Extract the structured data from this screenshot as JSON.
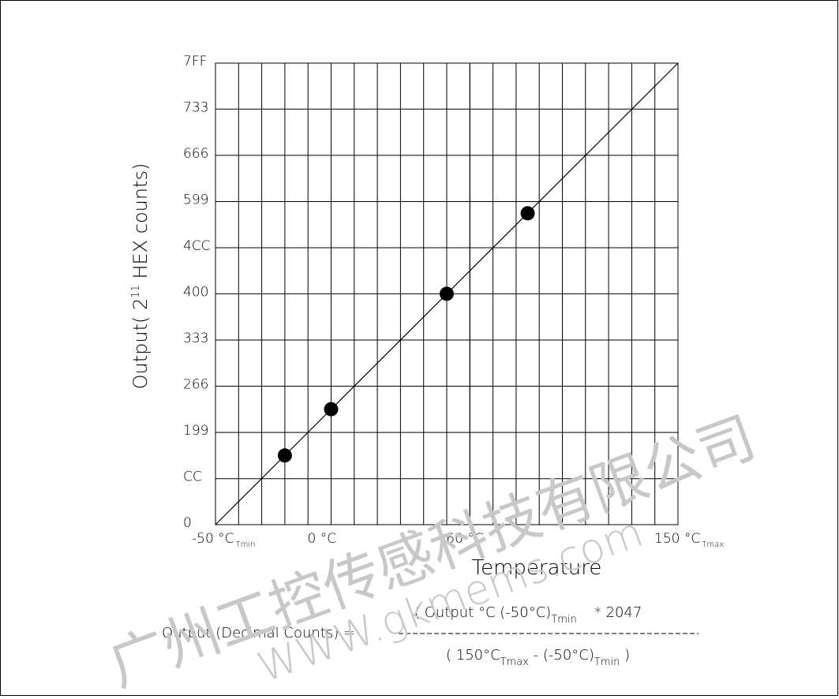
{
  "chart_data": {
    "type": "scatter",
    "x_label": "Temperature",
    "y_label": {
      "before": "Output( 2",
      "superscript": "11",
      "after": " HEX counts)"
    },
    "xlim": [
      -50,
      150
    ],
    "xticks": [
      {
        "value": -50,
        "label": "-50 °C",
        "subscript": "Tmin"
      },
      {
        "value": 0,
        "label": "0 °C"
      },
      {
        "value": 60,
        "label": "60 °C"
      },
      {
        "value": 150,
        "label": "150 °C",
        "subscript": "Tmax"
      }
    ],
    "xgrid": [
      -40,
      -30,
      -20,
      -10,
      0,
      10,
      20,
      30,
      40,
      50,
      60,
      70,
      80,
      90,
      100,
      110,
      120,
      130,
      140
    ],
    "ylim": [
      0,
      2047
    ],
    "yticks": [
      0,
      {
        "value": 204,
        "label": "CC"
      },
      {
        "value": 409,
        "label": "199"
      },
      {
        "value": 614,
        "label": "266"
      },
      {
        "value": 819,
        "label": "333"
      },
      {
        "value": 1024,
        "label": "400"
      },
      {
        "value": 1228,
        "label": "4CC"
      },
      {
        "value": 1433,
        "label": "599"
      },
      {
        "value": 1638,
        "label": "666"
      },
      {
        "value": 1843,
        "label": "733"
      },
      {
        "value": 2047,
        "label": "7FF"
      }
    ],
    "grid": true,
    "color": "#000000",
    "line": {
      "x": [
        -50,
        150
      ],
      "values": [
        0,
        2047
      ]
    },
    "points": {
      "x": [
        -20,
        0,
        50,
        85
      ],
      "values": [
        307,
        512,
        1024,
        1381
      ]
    },
    "formula": {
      "lhs": "Output (Decimal Counts) =",
      "numerator": {
        "text": "( Output °C (-50°C)",
        "subscript": "Tmin",
        "tail": "* 2047"
      },
      "denominator": {
        "text1": "( 150°C",
        "sub1": "Tmax",
        "text2": " - (-50°C)",
        "sub2": "Tmin",
        "tail": " )"
      }
    },
    "watermark": {
      "company": "广州工控传感科技有限公司",
      "url": "WWW.gkmems.com"
    }
  }
}
